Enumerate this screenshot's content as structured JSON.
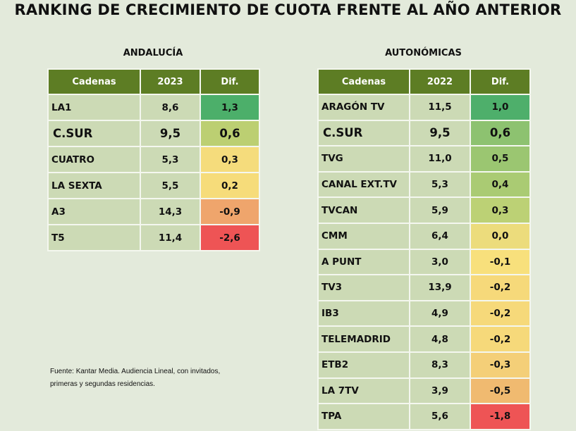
{
  "title": "RANKING DE CRECIMIENTO DE CUOTA FRENTE AL AÑO ANTERIOR",
  "andalucia": {
    "subtitle": "ANDALUCÍA",
    "headers": [
      "Cadenas",
      "2023",
      "Dif."
    ],
    "rows": [
      {
        "channel": "LA1",
        "value": "8,6",
        "dif": "1,3",
        "color": "#4caf6a"
      },
      {
        "channel": "C.SUR",
        "value": "9,5",
        "dif": "0,6",
        "color": "#bccf72",
        "big": true
      },
      {
        "channel": "CUATRO",
        "value": "5,3",
        "dif": "0,3",
        "color": "#f5dc7c"
      },
      {
        "channel": "LA SEXTA",
        "value": "5,5",
        "dif": "0,2",
        "color": "#f6dc7a"
      },
      {
        "channel": "A3",
        "value": "14,3",
        "dif": "-0,9",
        "color": "#efa56c"
      },
      {
        "channel": "T5",
        "value": "11,4",
        "dif": "-2,6",
        "color": "#ee5455"
      }
    ]
  },
  "autonomicas": {
    "subtitle": "AUTONÓMICAS",
    "headers": [
      "Cadenas",
      "2022",
      "Dif."
    ],
    "rows": [
      {
        "channel": "ARAGÓN TV",
        "value": "11,5",
        "dif": "1,0",
        "color": "#4eaf6b"
      },
      {
        "channel": "C.SUR",
        "value": "9,5",
        "dif": "0,6",
        "color": "#8dc270",
        "big": true
      },
      {
        "channel": "TVG",
        "value": "11,0",
        "dif": "0,5",
        "color": "#9bc671"
      },
      {
        "channel": "CANAL EXT.TV",
        "value": "5,3",
        "dif": "0,4",
        "color": "#aacb73"
      },
      {
        "channel": "TVCAN",
        "value": "5,9",
        "dif": "0,3",
        "color": "#bcd175"
      },
      {
        "channel": "CMM",
        "value": "6,4",
        "dif": "0,0",
        "color": "#ecdc7c"
      },
      {
        "channel": "A PUNT",
        "value": "3,0",
        "dif": "-0,1",
        "color": "#f8e07c"
      },
      {
        "channel": "TV3",
        "value": "13,9",
        "dif": "-0,2",
        "color": "#f6d97a"
      },
      {
        "channel": "IB3",
        "value": "4,9",
        "dif": "-0,2",
        "color": "#f6d97a"
      },
      {
        "channel": "TELEMADRID",
        "value": "4,8",
        "dif": "-0,2",
        "color": "#f6d97a"
      },
      {
        "channel": "ETB2",
        "value": "8,3",
        "dif": "-0,3",
        "color": "#f4cf78"
      },
      {
        "channel": "LA 7TV",
        "value": "3,9",
        "dif": "-0,5",
        "color": "#f0ba70"
      },
      {
        "channel": "TPA",
        "value": "5,6",
        "dif": "-1,8",
        "color": "#ee5455"
      }
    ]
  },
  "source": [
    "Fuente: Kantar Media. Audiencia Lineal, con invitados,",
    "primeras y segundas residencias."
  ]
}
